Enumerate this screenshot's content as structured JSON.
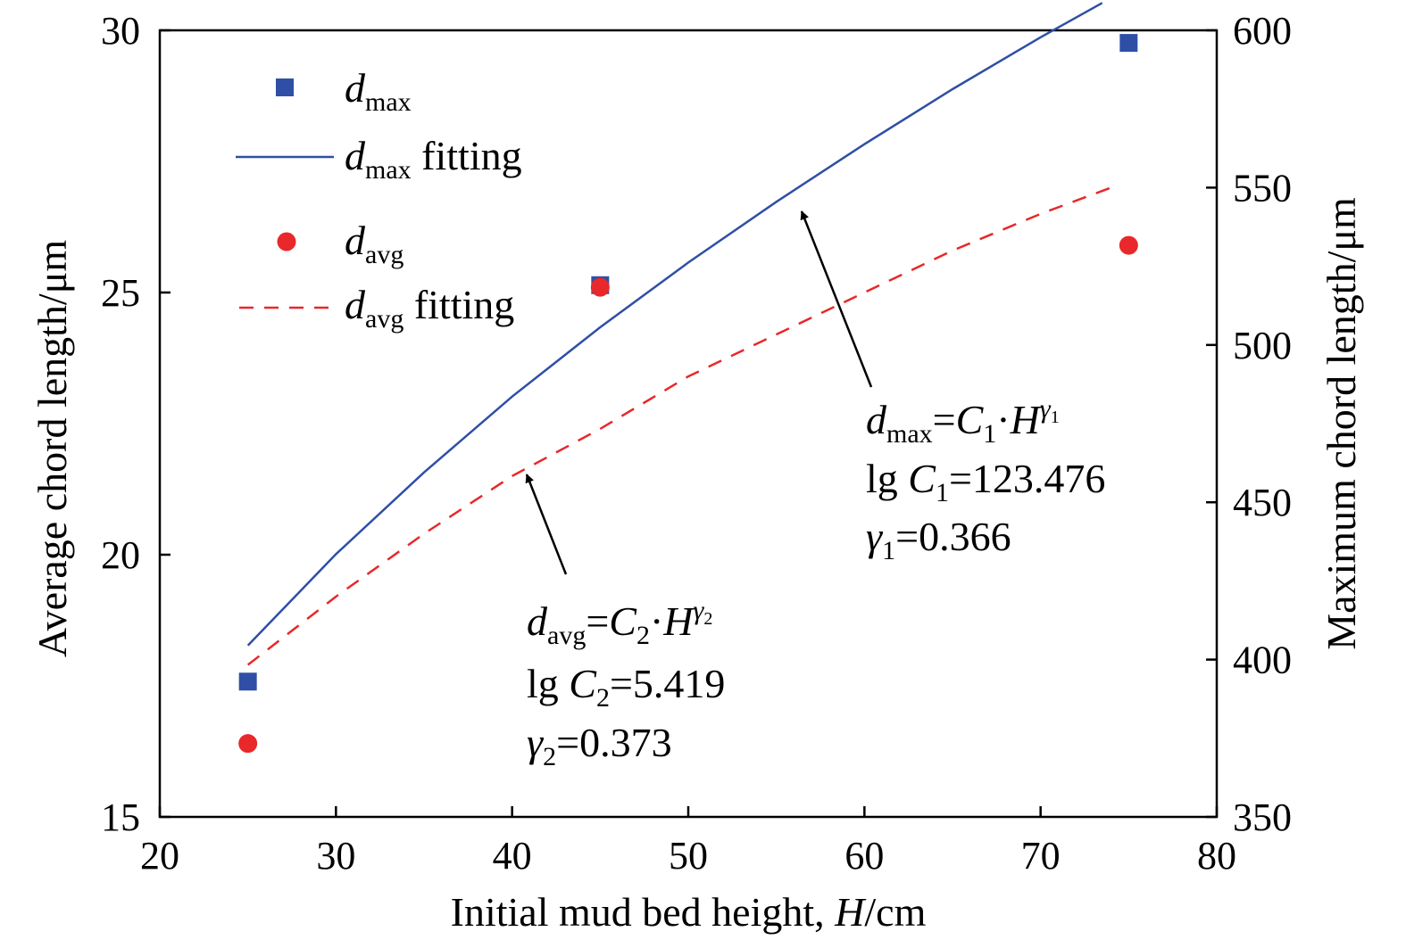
{
  "colors": {
    "dmax": "#2f4fa6",
    "davg": "#e8282a"
  },
  "chart_data": {
    "type": "scatter",
    "xlabel": "Initial mud bed height, H/cm",
    "ylabel_left": "Average chord length/μm",
    "ylabel_right": "Maximum chord length/μm",
    "xlim": [
      20,
      80
    ],
    "ylim_left": [
      15,
      30
    ],
    "ylim_right": [
      350,
      600
    ],
    "x_ticks": [
      "20",
      "30",
      "40",
      "50",
      "60",
      "70",
      "80"
    ],
    "y_left_ticks": [
      "15",
      "20",
      "25",
      "30"
    ],
    "y_right_ticks": [
      "350",
      "400",
      "450",
      "500",
      "550",
      "600"
    ],
    "legend": {
      "position": "top-left",
      "entries": [
        "d_max",
        "d_max fitting",
        "d_avg",
        "d_avg fitting"
      ]
    },
    "series": [
      {
        "name": "d_max",
        "axis": "right",
        "marker": "square",
        "x": [
          25,
          45,
          75
        ],
        "y": [
          393,
          519,
          596
        ]
      },
      {
        "name": "d_max fitting",
        "axis": "right",
        "style": "solid",
        "x": [
          25,
          30,
          35,
          40,
          45,
          50,
          55,
          60,
          65,
          70,
          73.5
        ],
        "y": [
          404.5,
          433.5,
          459.5,
          483.6,
          505.6,
          526.2,
          545.5,
          563.8,
          581.3,
          597.8,
          608.7
        ]
      },
      {
        "name": "d_avg",
        "axis": "left",
        "marker": "circle",
        "x": [
          25,
          45,
          75
        ],
        "y": [
          16.4,
          25.1,
          25.9
        ]
      },
      {
        "name": "d_avg fitting",
        "axis": "left",
        "style": "dashed",
        "x": [
          25,
          30,
          35,
          40,
          45,
          50,
          55,
          60,
          65,
          70,
          74
        ],
        "y": [
          17.9,
          19.2,
          20.4,
          21.5,
          22.4,
          23.4,
          24.2,
          25.0,
          25.8,
          26.5,
          27.0
        ]
      }
    ],
    "annotations": {
      "dmax_eq": {
        "lhs": "d",
        "lhs_sub": "max",
        "eq": "=",
        "c": "C",
        "c_sub": "1",
        "dot": "·",
        "h": "H",
        "exp": "γ",
        "exp_sub": "1"
      },
      "dmax_lg": {
        "prefix": "lg ",
        "c": "C",
        "c_sub": "1",
        "value": "=123.476"
      },
      "dmax_gamma": {
        "g": "γ",
        "g_sub": "1",
        "value": "=0.366"
      },
      "davg_eq": {
        "lhs": "d",
        "lhs_sub": "avg",
        "eq": "=",
        "c": "C",
        "c_sub": "2",
        "dot": "·",
        "h": "H",
        "exp": "γ",
        "exp_sub": "2"
      },
      "davg_lg": {
        "prefix": "lg ",
        "c": "C",
        "c_sub": "2",
        "value": "=5.419"
      },
      "davg_gamma": {
        "g": "γ",
        "g_sub": "2",
        "value": "=0.373"
      }
    },
    "legend_text": {
      "dmax": {
        "sym": "d",
        "sub": "max"
      },
      "dmax_fit": {
        "sym": "d",
        "sub": "max",
        "rest": " fitting"
      },
      "davg": {
        "sym": "d",
        "sub": "avg"
      },
      "davg_fit": {
        "sym": "d",
        "sub": "avg",
        "rest": " fitting"
      }
    },
    "xlabel_parts": {
      "pre": "Initial mud bed height, ",
      "var": "H",
      "post": "/cm"
    }
  }
}
